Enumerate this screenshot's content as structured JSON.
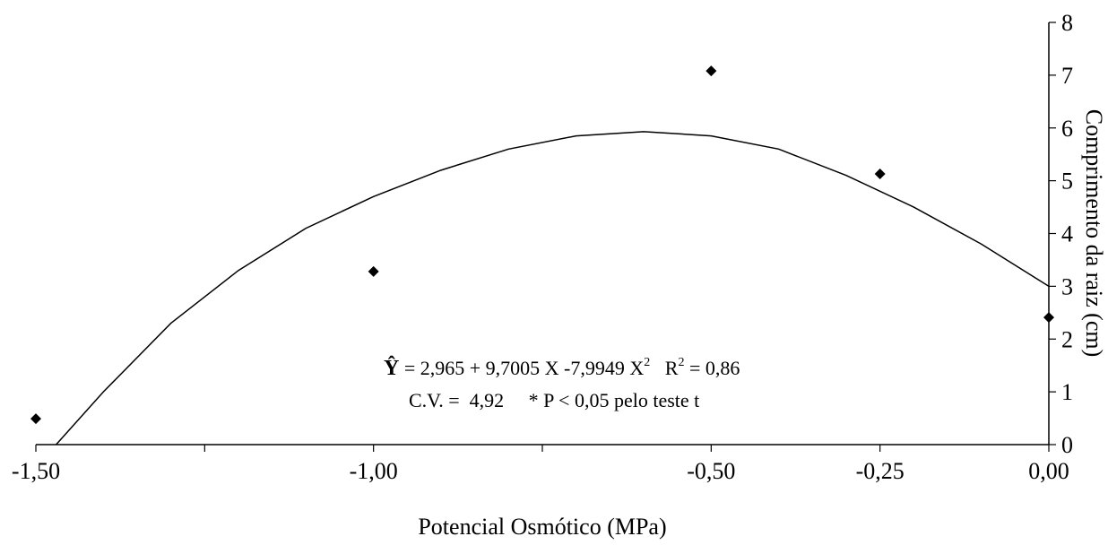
{
  "chart_data": {
    "type": "scatter",
    "x_label": "Potencial Osmótico (MPa)",
    "y_label": "Comprimento da raiz   (cm)",
    "xlim": [
      -1.5,
      0
    ],
    "ylim": [
      0,
      8
    ],
    "xticks": [
      {
        "value": -1.5,
        "label": "-1,50"
      },
      {
        "value": -1.25,
        "label": null
      },
      {
        "value": -1.0,
        "label": "-1,00"
      },
      {
        "value": -0.75,
        "label": null
      },
      {
        "value": -0.5,
        "label": "-0,50"
      },
      {
        "value": -0.25,
        "label": "-0,25"
      },
      {
        "value": 0,
        "label": "0,00"
      }
    ],
    "yticks": [
      0,
      1,
      2,
      3,
      4,
      5,
      6,
      7,
      8
    ],
    "y_axis_side": "right",
    "series": [
      {
        "kind": "points",
        "color": "#000000",
        "x": [
          -1.5,
          -1.0,
          -0.5,
          -0.25,
          0
        ],
        "values": [
          0.49,
          3.28,
          7.08,
          5.13,
          2.41
        ]
      },
      {
        "kind": "curve",
        "color": "#000000",
        "x": [
          -1.47,
          -1.4,
          -1.3,
          -1.2,
          -1.1,
          -1.0,
          -0.9,
          -0.8,
          -0.7,
          -0.6,
          -0.5,
          -0.4,
          -0.3,
          -0.2,
          -0.1,
          0
        ],
        "values": [
          0,
          1.0,
          2.3,
          3.3,
          4.1,
          4.7,
          5.2,
          5.6,
          5.85,
          5.93,
          5.85,
          5.6,
          5.1,
          4.5,
          3.8,
          3.0
        ]
      }
    ],
    "annotations": [
      {
        "parts": [
          "Ŷ",
          " = 2,965 + 9,7005 X -7,9949 X",
          "2",
          "   R",
          "2",
          " = 0,86"
        ]
      },
      {
        "parts": [
          "C.V. =  4,92     * P < 0,05 pelo teste t"
        ]
      }
    ]
  }
}
